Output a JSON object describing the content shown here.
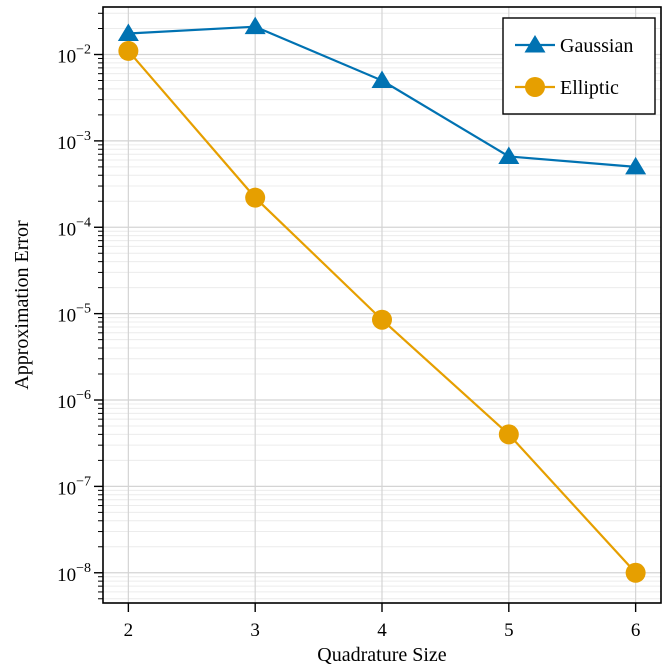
{
  "chart_data": {
    "type": "line",
    "title": "",
    "xlabel": "Quadrature Size",
    "ylabel": "Approximation Error",
    "x": [
      2,
      3,
      4,
      5,
      6
    ],
    "xlim": [
      1.8,
      6.2
    ],
    "ylim_log10": [
      -8.35,
      -1.45
    ],
    "y_scale": "log",
    "x_ticks": [
      "2",
      "3",
      "4",
      "5",
      "6"
    ],
    "y_ticks": [
      {
        "base": "10",
        "exp": "−2",
        "log10": -2
      },
      {
        "base": "10",
        "exp": "−3",
        "log10": -3
      },
      {
        "base": "10",
        "exp": "−4",
        "log10": -4
      },
      {
        "base": "10",
        "exp": "−5",
        "log10": -5
      },
      {
        "base": "10",
        "exp": "−6",
        "log10": -6
      },
      {
        "base": "10",
        "exp": "−7",
        "log10": -7
      },
      {
        "base": "10",
        "exp": "−8",
        "log10": -8
      }
    ],
    "grid": true,
    "legend_position": "top-right",
    "series": [
      {
        "name": "Gaussian",
        "marker": "triangle",
        "color": "#0072b2",
        "values": [
          0.0175,
          0.021,
          0.005,
          0.00066,
          0.0005
        ]
      },
      {
        "name": "Elliptic",
        "marker": "circle",
        "color": "#e69f00",
        "values": [
          0.011,
          0.00022,
          8.5e-06,
          4e-07,
          1e-08
        ]
      }
    ]
  }
}
